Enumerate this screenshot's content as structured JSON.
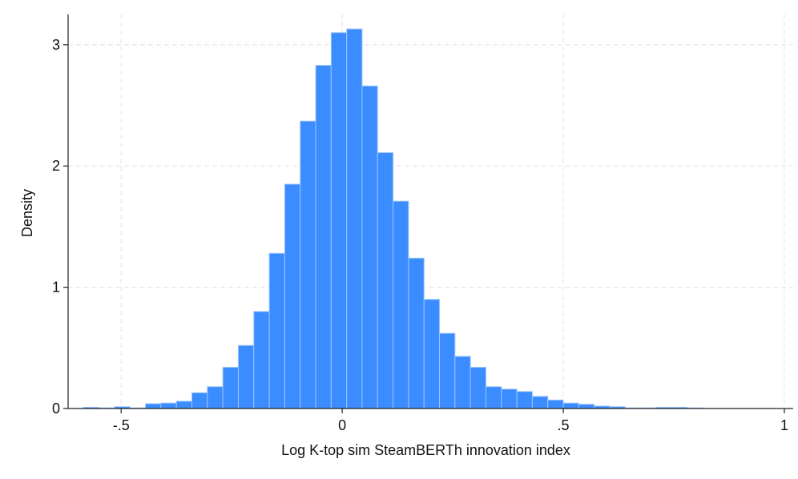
{
  "chart_data": {
    "type": "bar",
    "title": "",
    "xlabel": "Log K-top sim SteamBERTh innovation index",
    "ylabel": "Density",
    "xlim": [
      -0.62,
      1.02
    ],
    "ylim": [
      0,
      3.25
    ],
    "bin_width": 0.035,
    "x_ticks": [
      {
        "value": -0.5,
        "label": "-.5"
      },
      {
        "value": 0,
        "label": "0"
      },
      {
        "value": 0.5,
        "label": ".5"
      },
      {
        "value": 1,
        "label": "1"
      }
    ],
    "y_ticks": [
      {
        "value": 0,
        "label": "0"
      },
      {
        "value": 1,
        "label": "1"
      },
      {
        "value": 2,
        "label": "2"
      },
      {
        "value": 3,
        "label": "3"
      }
    ],
    "grid": true,
    "bar_color": "#3b8cff",
    "bar_edge_color": "#9cc6ff",
    "grid_color": "#e6e6e6",
    "bins": [
      {
        "left": -0.585,
        "value": 0.01
      },
      {
        "left": -0.55,
        "value": 0.005
      },
      {
        "left": -0.515,
        "value": 0.015
      },
      {
        "left": -0.48,
        "value": 0.005
      },
      {
        "left": -0.445,
        "value": 0.04
      },
      {
        "left": -0.41,
        "value": 0.045
      },
      {
        "left": -0.375,
        "value": 0.06
      },
      {
        "left": -0.34,
        "value": 0.13
      },
      {
        "left": -0.305,
        "value": 0.18
      },
      {
        "left": -0.27,
        "value": 0.34
      },
      {
        "left": -0.235,
        "value": 0.52
      },
      {
        "left": -0.2,
        "value": 0.8
      },
      {
        "left": -0.165,
        "value": 1.28
      },
      {
        "left": -0.13,
        "value": 1.85
      },
      {
        "left": -0.095,
        "value": 2.37
      },
      {
        "left": -0.06,
        "value": 2.83
      },
      {
        "left": -0.025,
        "value": 3.1
      },
      {
        "left": 0.01,
        "value": 3.13
      },
      {
        "left": 0.045,
        "value": 2.66
      },
      {
        "left": 0.08,
        "value": 2.11
      },
      {
        "left": 0.115,
        "value": 1.71
      },
      {
        "left": 0.15,
        "value": 1.24
      },
      {
        "left": 0.185,
        "value": 0.9
      },
      {
        "left": 0.22,
        "value": 0.62
      },
      {
        "left": 0.255,
        "value": 0.43
      },
      {
        "left": 0.29,
        "value": 0.34
      },
      {
        "left": 0.325,
        "value": 0.18
      },
      {
        "left": 0.36,
        "value": 0.16
      },
      {
        "left": 0.395,
        "value": 0.14
      },
      {
        "left": 0.43,
        "value": 0.1
      },
      {
        "left": 0.465,
        "value": 0.07
      },
      {
        "left": 0.5,
        "value": 0.045
      },
      {
        "left": 0.535,
        "value": 0.035
      },
      {
        "left": 0.57,
        "value": 0.02
      },
      {
        "left": 0.605,
        "value": 0.015
      },
      {
        "left": 0.64,
        "value": 0.005
      },
      {
        "left": 0.675,
        "value": 0.005
      },
      {
        "left": 0.71,
        "value": 0.01
      },
      {
        "left": 0.745,
        "value": 0.01
      },
      {
        "left": 0.78,
        "value": 0.005
      }
    ]
  }
}
